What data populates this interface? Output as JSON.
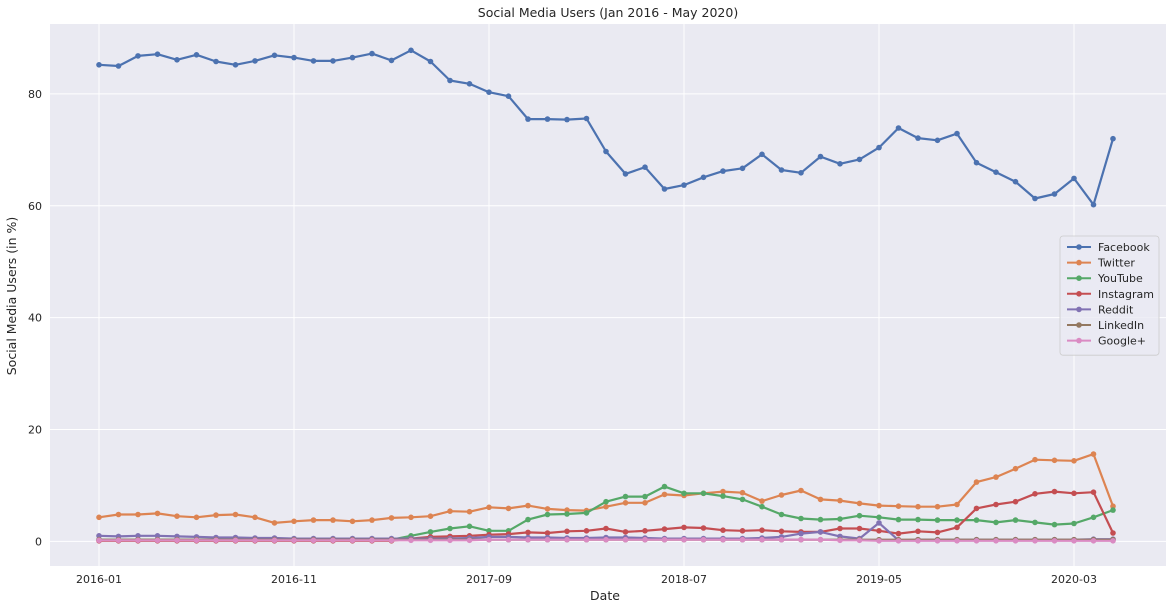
{
  "chart_data": {
    "type": "line",
    "title": "Social Media Users (Jan 2016 - May 2020)",
    "xlabel": "Date",
    "ylabel": "Social Media Users (in %)",
    "x": [
      "2016-01",
      "2016-02",
      "2016-03",
      "2016-04",
      "2016-05",
      "2016-06",
      "2016-07",
      "2016-08",
      "2016-09",
      "2016-10",
      "2016-11",
      "2016-12",
      "2017-01",
      "2017-02",
      "2017-03",
      "2017-04",
      "2017-05",
      "2017-06",
      "2017-07",
      "2017-08",
      "2017-09",
      "2017-10",
      "2017-11",
      "2017-12",
      "2018-01",
      "2018-02",
      "2018-03",
      "2018-04",
      "2018-05",
      "2018-06",
      "2018-07",
      "2018-08",
      "2018-09",
      "2018-10",
      "2018-11",
      "2018-12",
      "2019-01",
      "2019-02",
      "2019-03",
      "2019-04",
      "2019-05",
      "2019-06",
      "2019-07",
      "2019-08",
      "2019-09",
      "2019-10",
      "2019-11",
      "2019-12",
      "2020-01",
      "2020-02",
      "2020-03",
      "2020-04",
      "2020-05"
    ],
    "xticks": [
      "2016-01",
      "2016-11",
      "2017-09",
      "2018-07",
      "2019-05",
      "2020-03"
    ],
    "yticks": [
      0,
      20,
      40,
      60,
      80
    ],
    "ylim": [
      -4.4,
      92.5
    ],
    "grid": true,
    "legend_position": "center-right",
    "series": [
      {
        "name": "Facebook",
        "color": "#4c72b0",
        "values": [
          85.2,
          85.0,
          86.8,
          87.1,
          86.1,
          87.0,
          85.8,
          85.2,
          85.9,
          86.9,
          86.5,
          85.9,
          85.9,
          86.5,
          87.2,
          86.0,
          87.8,
          85.8,
          82.4,
          81.8,
          80.3,
          79.6,
          75.5,
          75.5,
          75.4,
          75.6,
          69.7,
          65.7,
          66.9,
          63.0,
          63.7,
          65.1,
          66.2,
          66.7,
          69.2,
          66.4,
          65.9,
          68.8,
          67.5,
          68.3,
          70.4,
          73.9,
          72.1,
          71.7,
          72.9,
          67.7,
          66.0,
          64.3,
          61.3,
          62.1,
          64.9,
          60.2,
          72.0
        ]
      },
      {
        "name": "Twitter",
        "color": "#dd8452",
        "values": [
          4.3,
          4.8,
          4.8,
          5.0,
          4.5,
          4.3,
          4.7,
          4.8,
          4.3,
          3.3,
          3.6,
          3.8,
          3.8,
          3.6,
          3.8,
          4.2,
          4.3,
          4.5,
          5.4,
          5.3,
          6.1,
          5.9,
          6.4,
          5.8,
          5.6,
          5.5,
          6.2,
          6.9,
          6.9,
          8.4,
          8.2,
          8.6,
          8.9,
          8.7,
          7.2,
          8.3,
          9.1,
          7.5,
          7.3,
          6.8,
          6.4,
          6.3,
          6.2,
          6.2,
          6.6,
          10.6,
          11.5,
          13.0,
          14.6,
          14.5,
          14.4,
          15.6,
          6.3
        ]
      },
      {
        "name": "YouTube",
        "color": "#55a868",
        "values": [
          0.3,
          0.3,
          0.3,
          0.3,
          0.3,
          0.3,
          0.3,
          0.3,
          0.3,
          0.3,
          0.3,
          0.3,
          0.3,
          0.3,
          0.3,
          0.3,
          1.0,
          1.7,
          2.3,
          2.7,
          1.9,
          1.9,
          3.9,
          4.8,
          4.9,
          5.1,
          7.1,
          8.0,
          8.0,
          9.8,
          8.6,
          8.6,
          8.1,
          7.5,
          6.2,
          4.8,
          4.1,
          3.9,
          4.0,
          4.6,
          4.3,
          3.9,
          3.9,
          3.8,
          3.8,
          3.8,
          3.4,
          3.8,
          3.4,
          3.0,
          3.2,
          4.3,
          5.6
        ]
      },
      {
        "name": "Instagram",
        "color": "#c44e52",
        "values": [
          0.1,
          0.1,
          0.1,
          0.1,
          0.1,
          0.1,
          0.1,
          0.1,
          0.1,
          0.1,
          0.1,
          0.1,
          0.1,
          0.1,
          0.1,
          0.1,
          0.5,
          0.8,
          0.9,
          1.0,
          1.2,
          1.3,
          1.6,
          1.5,
          1.8,
          1.9,
          2.3,
          1.7,
          1.9,
          2.2,
          2.5,
          2.4,
          2.0,
          1.9,
          2.0,
          1.8,
          1.7,
          1.7,
          2.3,
          2.3,
          1.9,
          1.4,
          1.8,
          1.6,
          2.5,
          5.9,
          6.6,
          7.1,
          8.5,
          8.9,
          8.6,
          8.8,
          1.5
        ]
      },
      {
        "name": "Reddit",
        "color": "#8172b3",
        "values": [
          1.0,
          0.9,
          1.0,
          1.0,
          0.9,
          0.8,
          0.7,
          0.7,
          0.6,
          0.6,
          0.5,
          0.5,
          0.5,
          0.5,
          0.5,
          0.5,
          0.5,
          0.5,
          0.5,
          0.6,
          0.8,
          0.8,
          0.7,
          0.7,
          0.6,
          0.6,
          0.7,
          0.7,
          0.6,
          0.5,
          0.5,
          0.5,
          0.5,
          0.5,
          0.6,
          0.8,
          1.4,
          1.7,
          0.9,
          0.5,
          3.3,
          0.2,
          0.3,
          0.3,
          0.3,
          0.3,
          0.3,
          0.3,
          0.3,
          0.3,
          0.3,
          0.4,
          0.4
        ]
      },
      {
        "name": "LinkedIn",
        "color": "#937860",
        "values": [
          0.3,
          0.3,
          0.3,
          0.3,
          0.3,
          0.3,
          0.3,
          0.3,
          0.3,
          0.3,
          0.3,
          0.3,
          0.3,
          0.3,
          0.3,
          0.3,
          0.3,
          0.3,
          0.3,
          0.3,
          0.3,
          0.3,
          0.3,
          0.3,
          0.3,
          0.3,
          0.3,
          0.3,
          0.3,
          0.3,
          0.3,
          0.3,
          0.3,
          0.3,
          0.3,
          0.3,
          0.3,
          0.3,
          0.3,
          0.3,
          0.3,
          0.3,
          0.3,
          0.3,
          0.3,
          0.3,
          0.3,
          0.3,
          0.3,
          0.3,
          0.3,
          0.3,
          0.3
        ]
      },
      {
        "name": "Google+",
        "color": "#da8bc3",
        "values": [
          0.2,
          0.2,
          0.2,
          0.2,
          0.2,
          0.2,
          0.2,
          0.2,
          0.2,
          0.2,
          0.2,
          0.2,
          0.2,
          0.2,
          0.2,
          0.2,
          0.2,
          0.2,
          0.2,
          0.2,
          0.3,
          0.3,
          0.3,
          0.3,
          0.3,
          0.3,
          0.3,
          0.3,
          0.3,
          0.3,
          0.3,
          0.3,
          0.3,
          0.3,
          0.3,
          0.3,
          0.3,
          0.3,
          0.2,
          0.2,
          0.1,
          0.1,
          0.1,
          0.1,
          0.1,
          0.1,
          0.1,
          0.1,
          0.1,
          0.1,
          0.1,
          0.1,
          0.1
        ]
      }
    ]
  },
  "style": {
    "plot_background": "#eaeaf2",
    "grid_color": "#ffffff"
  }
}
